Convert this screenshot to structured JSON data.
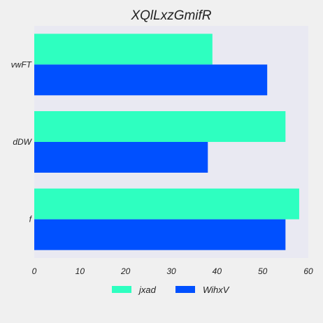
{
  "chart_data": {
    "type": "bar",
    "orientation": "horizontal",
    "title": "XQlLxzGmifR",
    "xlabel": "",
    "ylabel": "",
    "categories": [
      "vwFT",
      "dDW",
      "f"
    ],
    "series": [
      {
        "name": "jxad",
        "color": "#2effc0",
        "values": [
          39,
          55,
          58
        ]
      },
      {
        "name": "WihxV",
        "color": "#0050ff",
        "values": [
          51,
          38,
          55
        ]
      }
    ],
    "xlim": [
      0,
      60
    ],
    "xticks": [
      0,
      10,
      20,
      30,
      40,
      50,
      60
    ],
    "grid": false,
    "legend_position": "bottom",
    "plot_background": "#e9e9f2"
  }
}
